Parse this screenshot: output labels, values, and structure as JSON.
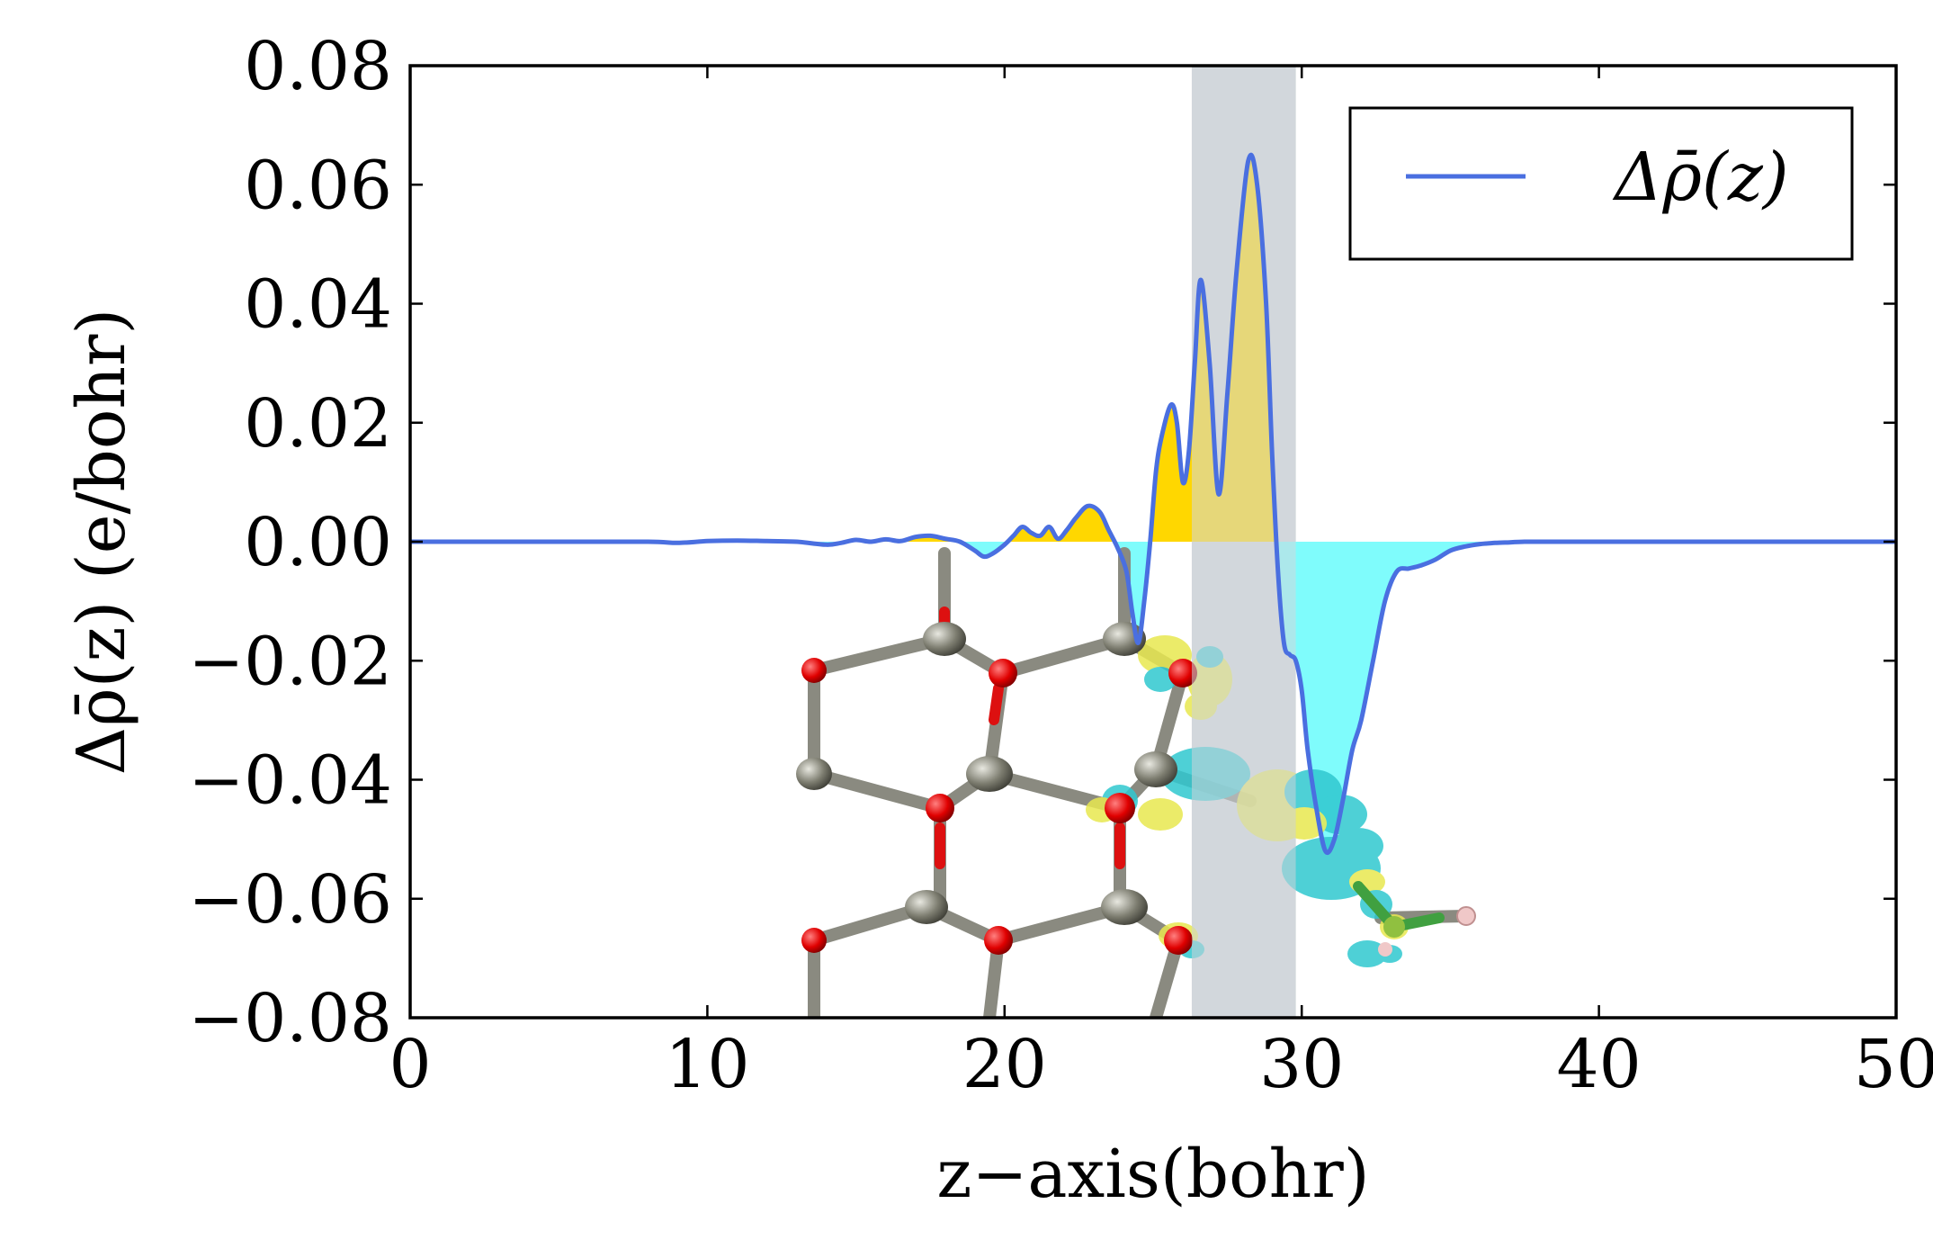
{
  "chart_data": {
    "type": "line",
    "title": "",
    "xlabel": "z−axis(bohr)",
    "ylabel": "Δρ̄(z) (e/bohr)",
    "xlim": [
      0,
      50
    ],
    "ylim": [
      -0.08,
      0.08
    ],
    "x_ticks": [
      0,
      10,
      20,
      30,
      40,
      50
    ],
    "x_tick_labels": [
      "0",
      "10",
      "20",
      "30",
      "40",
      "50"
    ],
    "y_ticks": [
      0.08,
      0.06,
      0.04,
      0.02,
      0.0,
      -0.02,
      -0.04,
      -0.06,
      -0.08
    ],
    "y_tick_labels": [
      "0.08",
      "0.06",
      "0.04",
      "0.02",
      "0.00",
      "−0.02",
      "−0.04",
      "−0.06",
      "−0.08"
    ],
    "grid": false,
    "legend": {
      "position": "top-right",
      "entries": [
        "Δρ̄(z)"
      ]
    },
    "shaded_region": {
      "x_range": [
        26.3,
        29.8
      ],
      "color": "#d2d7dc"
    },
    "fill_positive_color": "#ffd700",
    "fill_negative_color": "#7ffcfc",
    "line_color": "#4a6fe0",
    "series": [
      {
        "name": "Δρ̄(z)",
        "x": [
          0,
          5,
          8,
          9,
          10,
          11,
          12,
          13,
          14,
          14.5,
          15,
          15.5,
          16,
          16.5,
          17,
          17.5,
          18,
          18.5,
          19,
          19.3,
          19.6,
          20,
          20.3,
          20.6,
          20.9,
          21.2,
          21.5,
          21.8,
          22.1,
          22.4,
          22.8,
          23.2,
          23.5,
          23.8,
          24.1,
          24.3,
          24.5,
          24.7,
          24.9,
          25.1,
          25.3,
          25.6,
          25.8,
          26.0,
          26.2,
          26.4,
          26.6,
          26.9,
          27.2,
          27.5,
          27.8,
          28.2,
          28.5,
          28.8,
          29.0,
          29.2,
          29.4,
          29.6,
          29.8,
          30.0,
          30.2,
          30.5,
          30.8,
          31.1,
          31.4,
          31.7,
          32.0,
          32.4,
          32.8,
          33.2,
          33.6,
          34.0,
          34.5,
          35.0,
          35.5,
          36.0,
          36.5,
          37.0,
          37.5,
          38.0,
          39.0,
          40.0,
          42.0,
          45.0,
          50.0
        ],
        "y": [
          0.0,
          0.0,
          0.0,
          -0.0002,
          0.0001,
          0.0002,
          0.0001,
          0.0,
          -0.0005,
          -0.0002,
          0.0003,
          0.0,
          0.0004,
          0.0001,
          0.0008,
          0.001,
          0.0005,
          0.0,
          -0.0015,
          -0.0025,
          -0.002,
          -0.0005,
          0.001,
          0.0025,
          0.0015,
          0.001,
          0.0025,
          0.0005,
          0.002,
          0.004,
          0.006,
          0.005,
          0.002,
          -0.001,
          -0.005,
          -0.012,
          -0.017,
          -0.01,
          0.0,
          0.012,
          0.018,
          0.023,
          0.02,
          0.01,
          0.015,
          0.03,
          0.044,
          0.03,
          0.008,
          0.025,
          0.045,
          0.064,
          0.06,
          0.04,
          0.015,
          -0.005,
          -0.017,
          -0.019,
          -0.02,
          -0.025,
          -0.035,
          -0.045,
          -0.052,
          -0.05,
          -0.043,
          -0.035,
          -0.03,
          -0.02,
          -0.01,
          -0.005,
          -0.0045,
          -0.004,
          -0.003,
          -0.0015,
          -0.0008,
          -0.0004,
          -0.0002,
          -0.0001,
          0.0,
          0.0,
          0.0,
          0.0,
          0.0,
          0.0,
          0.0
        ]
      }
    ]
  }
}
